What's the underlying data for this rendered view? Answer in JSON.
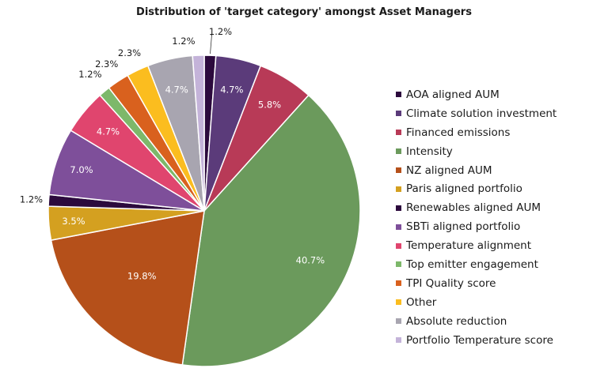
{
  "chart_data": {
    "type": "pie",
    "title": "Distribution of 'target category' amongst Asset Managers",
    "slices": [
      {
        "label": "AOA aligned AUM",
        "value": 1.2,
        "value_label": "1.2%",
        "color": "#2c0a3d"
      },
      {
        "label": "Climate solution investment",
        "value": 4.7,
        "value_label": "4.7%",
        "color": "#5b3b7a"
      },
      {
        "label": "Financed emissions",
        "value": 5.8,
        "value_label": "5.8%",
        "color": "#b83a57"
      },
      {
        "label": "Intensity",
        "value": 40.7,
        "value_label": "40.7%",
        "color": "#6b9a5c"
      },
      {
        "label": "NZ aligned AUM",
        "value": 19.8,
        "value_label": "19.8%",
        "color": "#b5501a"
      },
      {
        "label": "Paris aligned portfolio",
        "value": 3.5,
        "value_label": "3.5%",
        "color": "#d4a020"
      },
      {
        "label": "Renewables aligned AUM",
        "value": 1.2,
        "value_label": "1.2%",
        "color": "#2c0a3d"
      },
      {
        "label": "SBTi aligned portfolio",
        "value": 7.0,
        "value_label": "7.0%",
        "color": "#7e4f9a"
      },
      {
        "label": "Temperature alignment",
        "value": 4.7,
        "value_label": "4.7%",
        "color": "#e0456e"
      },
      {
        "label": "Top emitter engagement",
        "value": 1.2,
        "value_label": "1.2%",
        "color": "#7db86a"
      },
      {
        "label": "TPI Quality score",
        "value": 2.3,
        "value_label": "2.3%",
        "color": "#d9611e"
      },
      {
        "label": "Other",
        "value": 2.3,
        "value_label": "2.3%",
        "color": "#fbbd1f"
      },
      {
        "label": "Absolute reduction",
        "value": 4.7,
        "value_label": "4.7%",
        "color": "#a8a5b0"
      },
      {
        "label": "Portfolio Temperature score",
        "value": 1.2,
        "value_label": "1.2%",
        "color": "#c4b3d9"
      }
    ],
    "legend_position": "right"
  }
}
